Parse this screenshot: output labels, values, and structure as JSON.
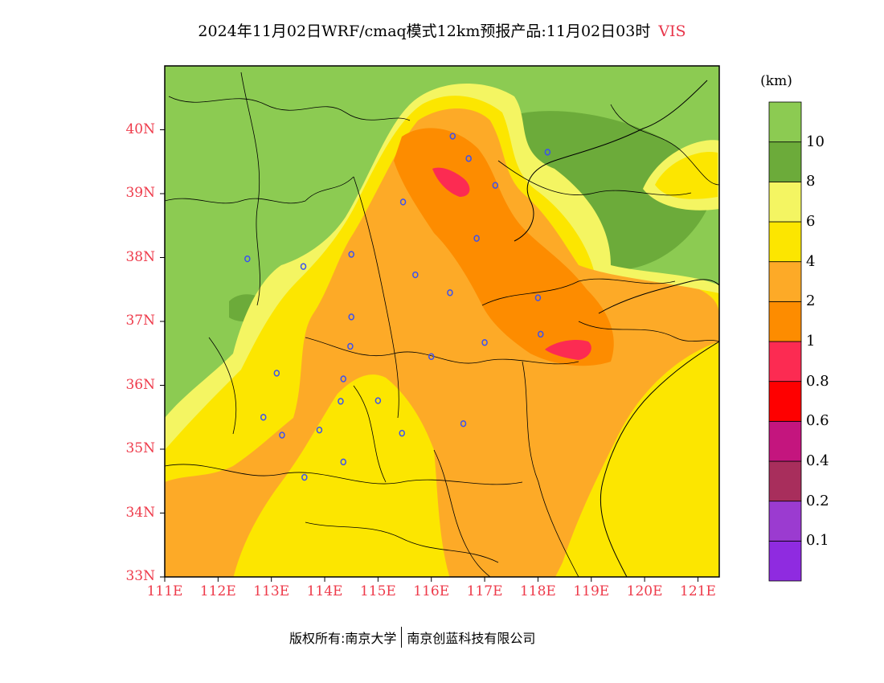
{
  "title": {
    "main": "2024年11月02日WRF/cmaq模式12km预报产品:11月02日03时",
    "variable": "VIS",
    "variable_color": "#e8364b"
  },
  "axes": {
    "lat_ticks": [
      "40N",
      "39N",
      "38N",
      "37N",
      "36N",
      "35N",
      "34N",
      "33N"
    ],
    "lon_ticks": [
      "111E",
      "112E",
      "113E",
      "114E",
      "115E",
      "116E",
      "117E",
      "118E",
      "119E",
      "120E",
      "121E"
    ],
    "tick_color": "#ee3b4b",
    "lon_range": [
      111,
      121.4
    ],
    "lat_range": [
      33,
      41
    ]
  },
  "colorbar": {
    "unit": "(km)",
    "bins": [
      {
        "color": "#8f2be0",
        "label": "0.1"
      },
      {
        "color": "#9b3bd0",
        "label": "0.2"
      },
      {
        "color": "#a82e5c",
        "label": "0.4"
      },
      {
        "color": "#c4157e",
        "label": "0.6"
      },
      {
        "color": "#fe0000",
        "label": "0.8"
      },
      {
        "color": "#fc2b52",
        "label": "1"
      },
      {
        "color": "#fd8c00",
        "label": "2"
      },
      {
        "color": "#fdaa27",
        "label": "4"
      },
      {
        "color": "#fce600",
        "label": "6"
      },
      {
        "color": "#f4f562",
        "label": "8"
      },
      {
        "color": "#6cab3a",
        "label": "10"
      },
      {
        "color": "#8ccb52",
        "label": ""
      }
    ]
  },
  "map": {
    "cities": [
      {
        "lon": 116.4,
        "lat": 39.9
      },
      {
        "lon": 116.7,
        "lat": 39.55
      },
      {
        "lon": 117.2,
        "lat": 39.13
      },
      {
        "lon": 118.18,
        "lat": 39.65
      },
      {
        "lon": 115.47,
        "lat": 38.87
      },
      {
        "lon": 116.85,
        "lat": 38.3
      },
      {
        "lon": 112.55,
        "lat": 37.98
      },
      {
        "lon": 113.6,
        "lat": 37.86
      },
      {
        "lon": 114.5,
        "lat": 38.05
      },
      {
        "lon": 115.7,
        "lat": 37.73
      },
      {
        "lon": 116.35,
        "lat": 37.45
      },
      {
        "lon": 118.0,
        "lat": 37.37
      },
      {
        "lon": 114.5,
        "lat": 37.07
      },
      {
        "lon": 114.48,
        "lat": 36.61
      },
      {
        "lon": 116.0,
        "lat": 36.45
      },
      {
        "lon": 117.0,
        "lat": 36.67
      },
      {
        "lon": 118.05,
        "lat": 36.8
      },
      {
        "lon": 113.1,
        "lat": 36.19
      },
      {
        "lon": 114.35,
        "lat": 36.1
      },
      {
        "lon": 114.3,
        "lat": 35.75
      },
      {
        "lon": 115.0,
        "lat": 35.76
      },
      {
        "lon": 112.85,
        "lat": 35.5
      },
      {
        "lon": 113.2,
        "lat": 35.22
      },
      {
        "lon": 113.9,
        "lat": 35.3
      },
      {
        "lon": 115.45,
        "lat": 35.25
      },
      {
        "lon": 116.6,
        "lat": 35.4
      },
      {
        "lon": 114.35,
        "lat": 34.8
      },
      {
        "lon": 113.62,
        "lat": 34.56
      }
    ],
    "city_marker_color": "#3b52f0"
  },
  "footer": {
    "copyright": "版权所有:南京大学",
    "company": "南京创蓝科技有限公司"
  }
}
